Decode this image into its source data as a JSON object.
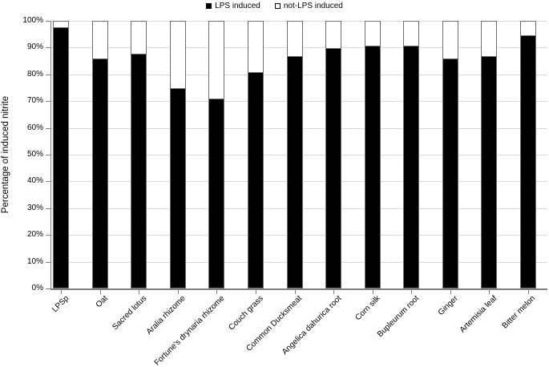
{
  "chart_data": {
    "type": "bar",
    "stacked": true,
    "orientation": "vertical",
    "title": "",
    "xlabel": "",
    "ylabel": "Percentage of induced nitrite",
    "ylim": [
      0,
      100
    ],
    "ytick_step": 10,
    "ytick_labels": [
      "0%",
      "10%",
      "20%",
      "30%",
      "40%",
      "50%",
      "60%",
      "70%",
      "80%",
      "90%",
      "100%"
    ],
    "grid": true,
    "legend_position": "top-center",
    "categories": [
      "LPSp",
      "Oat",
      "Sacred lotus",
      "Aralia rhizome",
      "Fortune's drynaria rhizome",
      "Couch grass",
      "Common Ducksmeat",
      "Angelica dahurica root",
      "Corn silk",
      "Bupleurum root",
      "Ginger",
      "Artemisia leaf",
      "Bitter melon"
    ],
    "series": [
      {
        "name": "LPS induced",
        "color": "#000000",
        "values": [
          98,
          86,
          88,
          75,
          71,
          81,
          87,
          90,
          91,
          91,
          86,
          87,
          95
        ]
      },
      {
        "name": "not-LPS induced",
        "color": "#ffffff",
        "values": [
          2,
          14,
          12,
          25,
          29,
          19,
          13,
          10,
          9,
          9,
          14,
          13,
          5
        ]
      }
    ],
    "colors": {
      "bar_outline": "#6e6e6e",
      "gridline": "#d9d9d9",
      "axis": "#808080",
      "text": "#000000",
      "background": "#ffffff"
    }
  }
}
